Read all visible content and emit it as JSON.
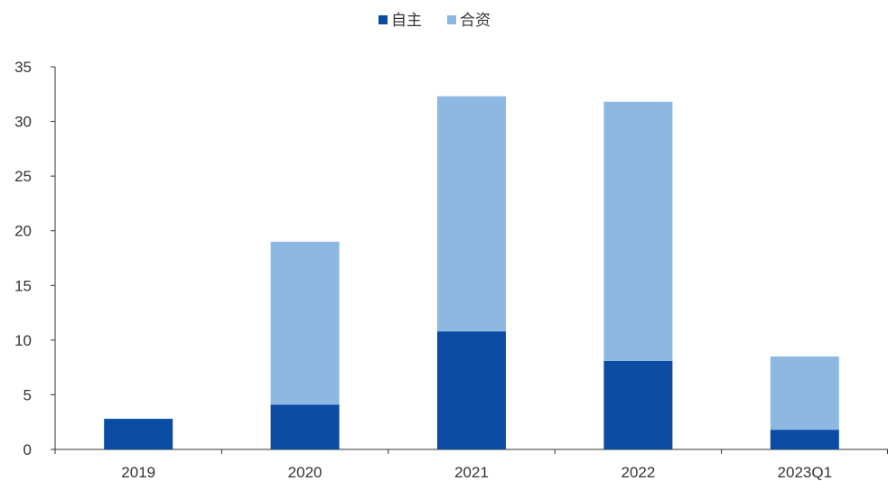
{
  "chart_data": {
    "type": "bar",
    "stacked": true,
    "categories": [
      "2019",
      "2020",
      "2021",
      "2022",
      "2023Q1"
    ],
    "series": [
      {
        "name": "自主",
        "color": "#0a4ba3",
        "values": [
          2.8,
          4.1,
          10.8,
          8.1,
          1.8
        ]
      },
      {
        "name": "合资",
        "color": "#8db8e2",
        "values": [
          0.0,
          14.9,
          21.5,
          23.7,
          6.7
        ]
      }
    ],
    "ylim": [
      0,
      35
    ],
    "yticks": [
      0,
      5,
      10,
      15,
      20,
      25,
      30,
      35
    ],
    "grid": false,
    "legend": "top-center",
    "title": "",
    "xlabel": "",
    "ylabel": ""
  }
}
